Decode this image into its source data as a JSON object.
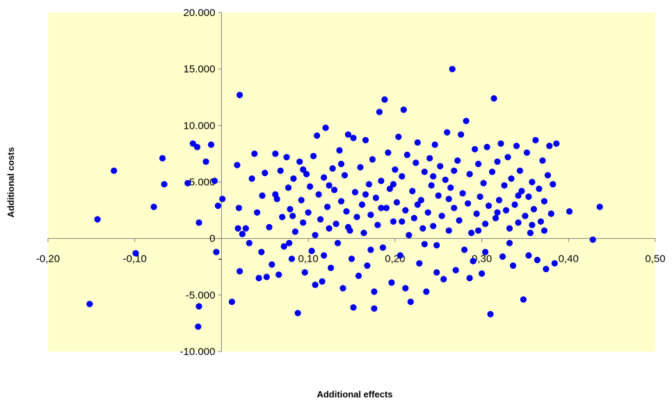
{
  "chart_data": {
    "type": "scatter",
    "title": "",
    "xlabel": "Additional effects",
    "ylabel": "Additional costs",
    "xlim": [
      -0.2,
      0.5
    ],
    "ylim": [
      -10000,
      20000
    ],
    "x_ticks": [
      {
        "value": -0.2,
        "label": "-0,20"
      },
      {
        "value": -0.1,
        "label": "-0,10"
      },
      {
        "value": 0.1,
        "label": "0,10"
      },
      {
        "value": 0.2,
        "label": "0,20"
      },
      {
        "value": 0.3,
        "label": "0,30"
      },
      {
        "value": 0.4,
        "label": "0,40"
      },
      {
        "value": 0.5,
        "label": "0,50"
      }
    ],
    "x_zero_label": "-",
    "y_ticks": [
      {
        "value": 20000,
        "label": "20.000"
      },
      {
        "value": 15000,
        "label": "15.000"
      },
      {
        "value": 10000,
        "label": "10.000"
      },
      {
        "value": 5000,
        "label": "5.000"
      },
      {
        "value": 0,
        "label": "0"
      },
      {
        "value": -5000,
        "label": "-5.000"
      },
      {
        "value": -10000,
        "label": "-10.000"
      }
    ],
    "grid": false,
    "legend": "none",
    "plot_background": "#ffffcc",
    "marker_color": "#0000ee",
    "points": [
      [
        -0.152,
        -5800
      ],
      [
        -0.143,
        1700
      ],
      [
        -0.124,
        6000
      ],
      [
        -0.099,
        -1300
      ],
      [
        -0.078,
        2800
      ],
      [
        -0.068,
        7100
      ],
      [
        -0.066,
        4800
      ],
      [
        -0.039,
        4900
      ],
      [
        -0.033,
        8400
      ],
      [
        -0.028,
        8100
      ],
      [
        -0.026,
        1400
      ],
      [
        -0.026,
        -6000
      ],
      [
        -0.027,
        -7800
      ],
      [
        -0.018,
        6800
      ],
      [
        -0.012,
        8300
      ],
      [
        -0.006,
        -1200
      ],
      [
        -0.004,
        2900
      ],
      [
        -0.008,
        5100
      ],
      [
        0.001,
        3500
      ],
      [
        0.012,
        -5600
      ],
      [
        0.018,
        6500
      ],
      [
        0.019,
        900
      ],
      [
        0.02,
        2700
      ],
      [
        0.021,
        -2900
      ],
      [
        0.021,
        12700
      ],
      [
        0.024,
        400
      ],
      [
        0.028,
        900
      ],
      [
        0.032,
        -400
      ],
      [
        0.035,
        5300
      ],
      [
        0.038,
        7500
      ],
      [
        0.041,
        2300
      ],
      [
        0.043,
        -3500
      ],
      [
        0.046,
        -1200
      ],
      [
        0.047,
        3800
      ],
      [
        0.05,
        5800
      ],
      [
        0.052,
        -3400
      ],
      [
        0.055,
        1000
      ],
      [
        0.058,
        -2300
      ],
      [
        0.062,
        7500
      ],
      [
        0.064,
        3500
      ],
      [
        0.066,
        -3200
      ],
      [
        0.068,
        6000
      ],
      [
        0.07,
        1900
      ],
      [
        0.072,
        -700
      ],
      [
        0.075,
        7200
      ],
      [
        0.077,
        4500
      ],
      [
        0.079,
        2600
      ],
      [
        0.081,
        -1800
      ],
      [
        0.083,
        5300
      ],
      [
        0.085,
        600
      ],
      [
        0.088,
        -6600
      ],
      [
        0.09,
        6800
      ],
      [
        0.092,
        3400
      ],
      [
        0.094,
        1400
      ],
      [
        0.096,
        -3000
      ],
      [
        0.098,
        5700
      ],
      [
        0.1,
        2300
      ],
      [
        0.102,
        4600
      ],
      [
        0.104,
        -1100
      ],
      [
        0.106,
        7300
      ],
      [
        0.108,
        300
      ],
      [
        0.11,
        9100
      ],
      [
        0.112,
        3900
      ],
      [
        0.114,
        1700
      ],
      [
        0.116,
        -3800
      ],
      [
        0.118,
        5400
      ],
      [
        0.12,
        9800
      ],
      [
        0.122,
        2800
      ],
      [
        0.124,
        900
      ],
      [
        0.126,
        -2600
      ],
      [
        0.128,
        6200
      ],
      [
        0.13,
        4300
      ],
      [
        0.132,
        1300
      ],
      [
        0.134,
        -400
      ],
      [
        0.136,
        7800
      ],
      [
        0.138,
        3300
      ],
      [
        0.14,
        -4400
      ],
      [
        0.142,
        5600
      ],
      [
        0.144,
        2400
      ],
      [
        0.146,
        9200
      ],
      [
        0.148,
        700
      ],
      [
        0.15,
        -1800
      ],
      [
        0.152,
        8900
      ],
      [
        0.154,
        4100
      ],
      [
        0.156,
        1900
      ],
      [
        0.158,
        -3300
      ],
      [
        0.16,
        6300
      ],
      [
        0.162,
        3000
      ],
      [
        0.164,
        500
      ],
      [
        0.166,
        8700
      ],
      [
        0.168,
        -2400
      ],
      [
        0.17,
        4800
      ],
      [
        0.172,
        2100
      ],
      [
        0.174,
        7000
      ],
      [
        0.176,
        -6200
      ],
      [
        0.178,
        3600
      ],
      [
        0.18,
        1200
      ],
      [
        0.182,
        11200
      ],
      [
        0.184,
        5100
      ],
      [
        0.186,
        -800
      ],
      [
        0.188,
        12300
      ],
      [
        0.19,
        2700
      ],
      [
        0.192,
        7600
      ],
      [
        0.194,
        4400
      ],
      [
        0.196,
        -3900
      ],
      [
        0.198,
        1500
      ],
      [
        0.2,
        6100
      ],
      [
        0.202,
        3200
      ],
      [
        0.204,
        9000
      ],
      [
        0.206,
        -1500
      ],
      [
        0.208,
        5500
      ],
      [
        0.21,
        11400
      ],
      [
        0.212,
        2500
      ],
      [
        0.214,
        7400
      ],
      [
        0.216,
        300
      ],
      [
        0.218,
        -5600
      ],
      [
        0.22,
        4200
      ],
      [
        0.222,
        1800
      ],
      [
        0.224,
        6700
      ],
      [
        0.226,
        8500
      ],
      [
        0.228,
        -2200
      ],
      [
        0.23,
        3400
      ],
      [
        0.232,
        900
      ],
      [
        0.234,
        5900
      ],
      [
        0.236,
        -4700
      ],
      [
        0.238,
        2300
      ],
      [
        0.24,
        7100
      ],
      [
        0.242,
        4700
      ],
      [
        0.244,
        1100
      ],
      [
        0.246,
        8300
      ],
      [
        0.248,
        -600
      ],
      [
        0.25,
        3800
      ],
      [
        0.252,
        6400
      ],
      [
        0.254,
        2000
      ],
      [
        0.256,
        -3600
      ],
      [
        0.258,
        5200
      ],
      [
        0.26,
        9400
      ],
      [
        0.262,
        700
      ],
      [
        0.264,
        4500
      ],
      [
        0.266,
        15000
      ],
      [
        0.268,
        2700
      ],
      [
        0.27,
        -2800
      ],
      [
        0.272,
        6900
      ],
      [
        0.274,
        1600
      ],
      [
        0.276,
        9200
      ],
      [
        0.278,
        4000
      ],
      [
        0.28,
        -1000
      ],
      [
        0.282,
        10400
      ],
      [
        0.284,
        3100
      ],
      [
        0.286,
        5700
      ],
      [
        0.288,
        500
      ],
      [
        0.29,
        -2000
      ],
      [
        0.292,
        7900
      ],
      [
        0.294,
        2200
      ],
      [
        0.296,
        6600
      ],
      [
        0.298,
        3700
      ],
      [
        0.3,
        -3100
      ],
      [
        0.302,
        4900
      ],
      [
        0.304,
        1300
      ],
      [
        0.306,
        8100
      ],
      [
        0.308,
        2900
      ],
      [
        0.31,
        -6700
      ],
      [
        0.312,
        5900
      ],
      [
        0.314,
        12400
      ],
      [
        0.316,
        1800
      ],
      [
        0.318,
        6800
      ],
      [
        0.32,
        3400
      ],
      [
        0.322,
        8400
      ],
      [
        0.324,
        -1600
      ],
      [
        0.326,
        4700
      ],
      [
        0.328,
        2500
      ],
      [
        0.33,
        7200
      ],
      [
        0.332,
        900
      ],
      [
        0.334,
        5300
      ],
      [
        0.336,
        -2400
      ],
      [
        0.338,
        3000
      ],
      [
        0.34,
        8200
      ],
      [
        0.342,
        1400
      ],
      [
        0.344,
        6000
      ],
      [
        0.346,
        4200
      ],
      [
        0.348,
        -5400
      ],
      [
        0.35,
        2000
      ],
      [
        0.352,
        7600
      ],
      [
        0.354,
        3700
      ],
      [
        0.356,
        500
      ],
      [
        0.358,
        5000
      ],
      [
        0.36,
        2600
      ],
      [
        0.362,
        8700
      ],
      [
        0.364,
        -1900
      ],
      [
        0.366,
        4400
      ],
      [
        0.368,
        1500
      ],
      [
        0.37,
        6900
      ],
      [
        0.372,
        3300
      ],
      [
        0.374,
        -2700
      ],
      [
        0.376,
        5600
      ],
      [
        0.378,
        8200
      ],
      [
        0.38,
        2200
      ],
      [
        0.382,
        4800
      ],
      [
        0.384,
        -2200
      ],
      [
        0.386,
        8400
      ],
      [
        0.401,
        2400
      ],
      [
        0.428,
        -100
      ],
      [
        0.436,
        2800
      ],
      [
        0.108,
        -4100
      ],
      [
        0.152,
        -6100
      ],
      [
        0.176,
        -4700
      ],
      [
        0.212,
        -4400
      ],
      [
        0.248,
        -3000
      ],
      [
        0.286,
        -3500
      ],
      [
        0.062,
        3900
      ],
      [
        0.078,
        -400
      ],
      [
        0.094,
        6100
      ],
      [
        0.124,
        4700
      ],
      [
        0.138,
        6600
      ],
      [
        0.166,
        3900
      ],
      [
        0.184,
        2700
      ],
      [
        0.198,
        4800
      ],
      [
        0.226,
        3000
      ],
      [
        0.244,
        5500
      ],
      [
        0.268,
        6000
      ],
      [
        0.296,
        700
      ],
      [
        0.318,
        2300
      ],
      [
        0.342,
        3800
      ],
      [
        0.358,
        1200
      ],
      [
        0.372,
        700
      ],
      [
        0.082,
        2000
      ],
      [
        0.118,
        -1500
      ],
      [
        0.146,
        1000
      ],
      [
        0.172,
        -1000
      ],
      [
        0.208,
        1500
      ],
      [
        0.234,
        -500
      ],
      [
        0.262,
        3500
      ],
      [
        0.304,
        -1200
      ],
      [
        0.332,
        -400
      ],
      [
        0.354,
        -1500
      ]
    ]
  }
}
